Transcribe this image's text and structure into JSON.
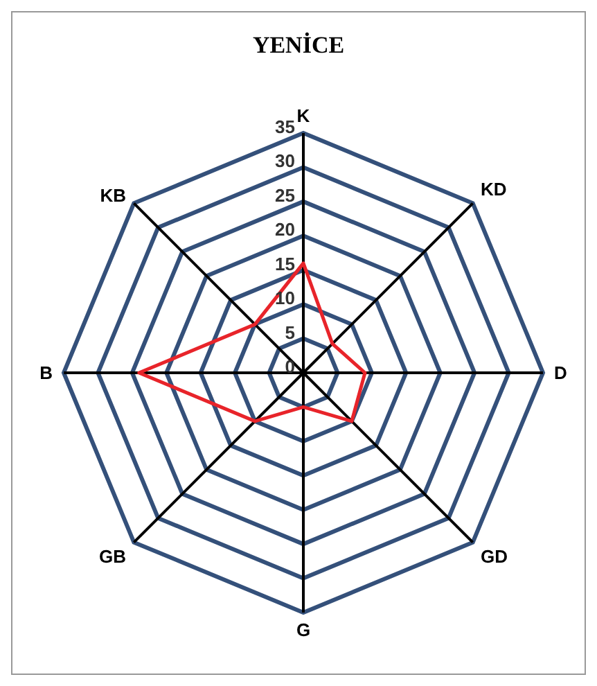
{
  "chart_data": {
    "type": "radar",
    "title": "YENİCE",
    "categories": [
      "K",
      "KD",
      "D",
      "GD",
      "G",
      "GB",
      "B",
      "KB"
    ],
    "series": [
      {
        "color": "#e8242a",
        "values": [
          16,
          6,
          9,
          10,
          5,
          10,
          24,
          10
        ]
      }
    ],
    "ylim": [
      0,
      35
    ],
    "yticks": [
      0,
      5,
      10,
      15,
      20,
      25,
      30,
      35
    ],
    "grid": true,
    "marker": "none"
  }
}
